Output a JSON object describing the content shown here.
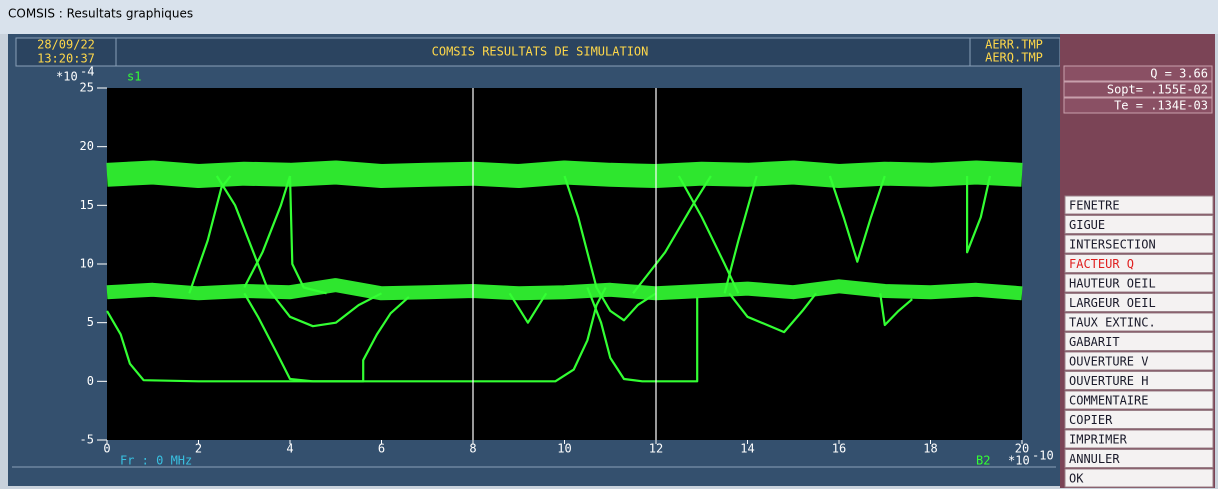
{
  "window": {
    "title": "COMSIS : Resultats graphiques"
  },
  "header": {
    "date": "28/09/22",
    "time": "13:20:37",
    "title": "COMSIS RESULTATS DE SIMULATION",
    "files": [
      "AERR.TMP",
      "AERQ.TMP"
    ]
  },
  "results": [
    "Q  = 3.66",
    "Sopt= .155E-02",
    "Te  = .134E-03"
  ],
  "menu": {
    "items": [
      "FENETRE",
      "GIGUE",
      "INTERSECTION",
      "FACTEUR Q",
      "HAUTEUR OEIL",
      "LARGEUR OEIL",
      "TAUX EXTINC.",
      "GABARIT",
      "OUVERTURE V",
      "OUVERTURE H",
      "COMMENTAIRE",
      "COPIER",
      "IMPRIMER",
      "ANNULER",
      "OK"
    ],
    "selected": 3
  },
  "chart_data": {
    "type": "line",
    "trace_label": "s1",
    "y_scale": {
      "base": "*10",
      "exponent": "-4"
    },
    "x_scale": {
      "base": "*10",
      "exponent": "-10"
    },
    "xlim": [
      0,
      20
    ],
    "ylim": [
      -5,
      25
    ],
    "xticks": [
      0,
      2,
      4,
      6,
      8,
      10,
      12,
      14,
      16,
      18,
      20
    ],
    "yticks": [
      -5,
      0,
      5,
      10,
      15,
      20,
      25
    ],
    "cursors": [
      8,
      12
    ],
    "status_left": "Fr : 0 MHz",
    "status_right": "B2",
    "color": "#33ff33",
    "series": [
      {
        "x": [
          0,
          1,
          2,
          3,
          4,
          5,
          6,
          7,
          8,
          9,
          10,
          11,
          12,
          13,
          14,
          15,
          16,
          17,
          18,
          19,
          20
        ],
        "values": [
          17.6,
          17.8,
          17.5,
          17.7,
          17.6,
          17.8,
          17.5,
          17.6,
          17.7,
          17.5,
          17.8,
          17.6,
          17.5,
          17.7,
          17.6,
          17.8,
          17.5,
          17.7,
          17.6,
          17.8,
          17.6
        ]
      },
      {
        "x": [
          0,
          1,
          2,
          3,
          4,
          5,
          6,
          7,
          8,
          9,
          10,
          11,
          12,
          13,
          14,
          15,
          16,
          17,
          18,
          19,
          20
        ],
        "values": [
          7.6,
          7.8,
          7.5,
          7.7,
          7.6,
          8.2,
          7.5,
          7.6,
          7.7,
          7.5,
          7.6,
          7.8,
          7.5,
          7.7,
          7.9,
          7.6,
          8.1,
          7.7,
          7.6,
          7.8,
          7.5
        ]
      },
      {
        "x": [
          0,
          0.3,
          0.5,
          0.8,
          2,
          4,
          5.6,
          5.6,
          5.9,
          6.2,
          6.6
        ],
        "values": [
          6,
          4,
          1.5,
          0.1,
          0,
          0,
          0,
          1.8,
          4,
          5.8,
          7.2
        ]
      },
      {
        "x": [
          3,
          3.3,
          3.7,
          4,
          4.5,
          8,
          9.8,
          10.2,
          10.5,
          10.7,
          10.9
        ],
        "values": [
          7.5,
          5.5,
          2.5,
          0.2,
          0,
          0,
          0,
          1,
          3.5,
          6.5,
          8
        ]
      },
      {
        "x": [
          10.5,
          10.8,
          11,
          11.3,
          11.7,
          12.9,
          12.9
        ],
        "values": [
          8,
          5,
          2,
          0.2,
          0,
          0,
          7.2
        ]
      },
      {
        "x": [
          1.8,
          2.2,
          2.5,
          2.7
        ],
        "values": [
          7.5,
          12,
          16.5,
          17.5
        ]
      },
      {
        "x": [
          2.4,
          2.8,
          3.2,
          3.5,
          4,
          4.5,
          5,
          5.5,
          6
        ],
        "values": [
          17.5,
          15,
          11,
          8,
          5.5,
          4.7,
          5,
          6.5,
          7.5
        ]
      },
      {
        "x": [
          3,
          3.4,
          3.8,
          4
        ],
        "values": [
          8,
          11,
          15,
          17.5
        ]
      },
      {
        "x": [
          4,
          4.05,
          4.3,
          4.8
        ],
        "values": [
          17.5,
          10,
          8,
          7.5
        ]
      },
      {
        "x": [
          10,
          10.3,
          10.7,
          11,
          11.3,
          11.6,
          12
        ],
        "values": [
          17.5,
          14,
          8,
          6,
          5.2,
          6.5,
          7.5
        ]
      },
      {
        "x": [
          11.5,
          12.2,
          12.8,
          13.2
        ],
        "values": [
          7.5,
          11,
          15,
          17.5
        ]
      },
      {
        "x": [
          12.5,
          13,
          13.5,
          13.8
        ],
        "values": [
          17.5,
          14,
          10,
          7.5
        ]
      },
      {
        "x": [
          13.5,
          13.8,
          14.2
        ],
        "values": [
          7.5,
          12,
          17.5
        ]
      },
      {
        "x": [
          15.8,
          16.1,
          16.4,
          16.7,
          17
        ],
        "values": [
          17.5,
          14,
          10.2,
          14,
          17.5
        ]
      },
      {
        "x": [
          18.8,
          18.8,
          19.1,
          19.3
        ],
        "values": [
          17.5,
          11,
          14,
          17.5
        ]
      },
      {
        "x": [
          8.8,
          9.2,
          9.6
        ],
        "values": [
          7.5,
          5,
          7.5
        ]
      },
      {
        "x": [
          13.6,
          14,
          14.8,
          15.2,
          15.5
        ],
        "values": [
          7.5,
          5.5,
          4.2,
          6,
          7.5
        ]
      },
      {
        "x": [
          16.9,
          17,
          17.3,
          17.6
        ],
        "values": [
          7.5,
          4.8,
          6,
          7
        ]
      }
    ]
  }
}
